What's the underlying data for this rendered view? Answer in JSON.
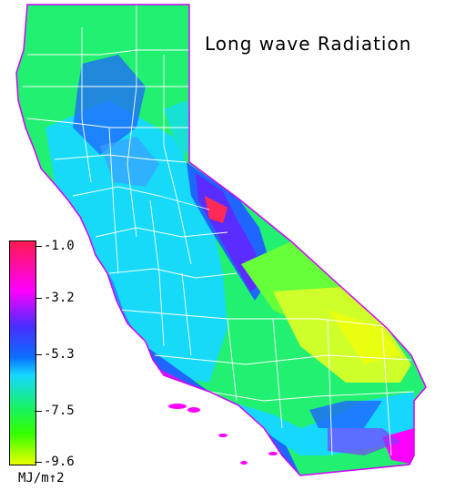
{
  "map": {
    "title": "Long wave Radiation",
    "region": "California"
  },
  "legend": {
    "unit": "MJ/m↑2",
    "ticks": [
      {
        "label": "-1.0",
        "color": "#ff1a50"
      },
      {
        "label": "-3.2",
        "color": "#ff00ff"
      },
      {
        "label": "-5.3",
        "color": "#0a70ff"
      },
      {
        "label": "-7.5",
        "color": "#17f06a"
      },
      {
        "label": "-9.6",
        "color": "#e8ff00"
      }
    ]
  },
  "colors": {
    "ocean": "#ffffff",
    "land_green": "#22f070",
    "land_cyan": "#16d8ff",
    "land_blue": "#1f66ff",
    "land_violet": "#5a2cff",
    "land_yellow": "#cfff2a",
    "land_magenta": "#ff00ff",
    "land_red": "#ff2a55",
    "county_lines": "#ffffff"
  }
}
